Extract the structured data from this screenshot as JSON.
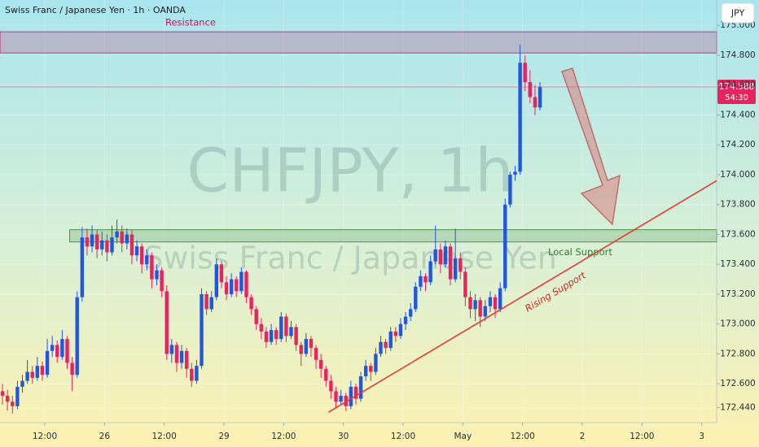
{
  "chart_data": {
    "type": "candlestick",
    "title": "Swiss Franc / Japanese Yen · 1h · OANDA",
    "watermark": "CHFJPY, 1h",
    "watermark_subtitle": "Swiss Franc / Japanese Yen",
    "currency": "JPY",
    "countdown": "54:30",
    "up_color": "#2157e0",
    "down_color": "#e8245f",
    "xlim": [
      0,
      144
    ],
    "xticks": [
      {
        "value": 9,
        "label": "12:00"
      },
      {
        "value": 21,
        "label": "26"
      },
      {
        "value": 33,
        "label": "12:00"
      },
      {
        "value": 45,
        "label": "29"
      },
      {
        "value": 57,
        "label": "12:00"
      },
      {
        "value": 69,
        "label": "30"
      },
      {
        "value": 81,
        "label": "12:00"
      },
      {
        "value": 93,
        "label": "May"
      },
      {
        "value": 105,
        "label": "12:00"
      },
      {
        "value": 117,
        "label": "2"
      },
      {
        "value": 129,
        "label": "12:00"
      },
      {
        "value": 141,
        "label": "3"
      }
    ],
    "ylim": [
      172.34,
      175.17
    ],
    "yticks": [
      {
        "value": 175.0,
        "label": "175.000"
      },
      {
        "value": 174.8,
        "label": "174.800"
      },
      {
        "value": 174.6,
        "label": "174.600"
      },
      {
        "value": 174.4,
        "label": "174.400"
      },
      {
        "value": 174.2,
        "label": "174.200"
      },
      {
        "value": 174.0,
        "label": "174.000"
      },
      {
        "value": 173.8,
        "label": "173.800"
      },
      {
        "value": 173.6,
        "label": "173.600"
      },
      {
        "value": 173.4,
        "label": "173.400"
      },
      {
        "value": 173.2,
        "label": "173.200"
      },
      {
        "value": 173.0,
        "label": "173.000"
      },
      {
        "value": 172.8,
        "label": "172.800"
      },
      {
        "value": 172.6,
        "label": "172.600"
      },
      {
        "value": 172.44,
        "label": "172.440"
      }
    ],
    "zones": [
      {
        "label": "Resistance",
        "low": 174.815,
        "high": 174.957,
        "color": "#c2185b"
      },
      {
        "label": "Local Support",
        "low": 173.55,
        "high": 173.632,
        "color": "#2e7d32"
      }
    ],
    "trendline": {
      "label": "Rising Support",
      "x": [
        66,
        144
      ],
      "y": [
        172.41,
        173.96
      ],
      "color": "#e53935"
    },
    "ohlc": [
      [
        172.55,
        172.6,
        172.46,
        172.52
      ],
      [
        172.52,
        172.56,
        172.42,
        172.48
      ],
      [
        172.48,
        172.52,
        172.4,
        172.45
      ],
      [
        172.45,
        172.62,
        172.43,
        172.58
      ],
      [
        172.58,
        172.66,
        172.54,
        172.62
      ],
      [
        172.62,
        172.76,
        172.6,
        172.68
      ],
      [
        172.68,
        172.72,
        172.6,
        172.64
      ],
      [
        172.64,
        172.78,
        172.62,
        172.72
      ],
      [
        172.72,
        172.75,
        172.62,
        172.66
      ],
      [
        172.66,
        172.9,
        172.64,
        172.82
      ],
      [
        172.82,
        172.92,
        172.78,
        172.86
      ],
      [
        172.86,
        172.89,
        172.74,
        172.78
      ],
      [
        172.78,
        172.96,
        172.76,
        172.9
      ],
      [
        172.9,
        172.92,
        172.7,
        172.74
      ],
      [
        172.74,
        172.78,
        172.55,
        172.66
      ],
      [
        172.66,
        173.22,
        172.64,
        173.18
      ],
      [
        173.18,
        173.65,
        173.15,
        173.58
      ],
      [
        173.58,
        173.64,
        173.46,
        173.52
      ],
      [
        173.52,
        173.66,
        173.48,
        173.6
      ],
      [
        173.6,
        173.63,
        173.44,
        173.5
      ],
      [
        173.5,
        173.62,
        173.46,
        173.56
      ],
      [
        173.56,
        173.6,
        173.42,
        173.48
      ],
      [
        173.48,
        173.66,
        173.46,
        173.58
      ],
      [
        173.58,
        173.7,
        173.54,
        173.62
      ],
      [
        173.62,
        173.66,
        173.48,
        173.54
      ],
      [
        173.54,
        173.64,
        173.5,
        173.6
      ],
      [
        173.6,
        173.63,
        173.4,
        173.46
      ],
      [
        173.46,
        173.56,
        173.42,
        173.52
      ],
      [
        173.52,
        173.54,
        173.34,
        173.4
      ],
      [
        173.4,
        173.5,
        173.36,
        173.46
      ],
      [
        173.46,
        173.48,
        173.24,
        173.3
      ],
      [
        173.3,
        173.4,
        173.26,
        173.36
      ],
      [
        173.36,
        173.38,
        173.18,
        173.22
      ],
      [
        173.22,
        173.26,
        172.76,
        172.8
      ],
      [
        172.8,
        172.9,
        172.74,
        172.86
      ],
      [
        172.86,
        172.88,
        172.68,
        172.74
      ],
      [
        172.74,
        172.86,
        172.7,
        172.82
      ],
      [
        172.82,
        172.84,
        172.64,
        172.7
      ],
      [
        172.7,
        172.74,
        172.58,
        172.62
      ],
      [
        172.62,
        172.76,
        172.6,
        172.72
      ],
      [
        172.72,
        173.24,
        172.7,
        173.2
      ],
      [
        173.2,
        173.22,
        173.06,
        173.1
      ],
      [
        173.1,
        173.22,
        173.08,
        173.18
      ],
      [
        173.18,
        173.44,
        173.16,
        173.4
      ],
      [
        173.4,
        173.42,
        173.24,
        173.28
      ],
      [
        173.28,
        173.32,
        173.16,
        173.2
      ],
      [
        173.2,
        173.34,
        173.18,
        173.3
      ],
      [
        173.3,
        173.32,
        173.18,
        173.22
      ],
      [
        173.22,
        173.38,
        173.2,
        173.35
      ],
      [
        173.35,
        173.36,
        173.14,
        173.18
      ],
      [
        173.18,
        173.2,
        173.06,
        173.1
      ],
      [
        173.1,
        173.12,
        172.96,
        173.0
      ],
      [
        173.0,
        173.04,
        172.9,
        172.95
      ],
      [
        172.95,
        172.98,
        172.84,
        172.88
      ],
      [
        172.88,
        173.0,
        172.86,
        172.96
      ],
      [
        172.96,
        172.98,
        172.86,
        172.9
      ],
      [
        172.9,
        173.08,
        172.88,
        173.05
      ],
      [
        173.05,
        173.07,
        172.88,
        172.92
      ],
      [
        172.92,
        173.02,
        172.9,
        172.98
      ],
      [
        172.98,
        173.0,
        172.82,
        172.86
      ],
      [
        172.86,
        172.88,
        172.72,
        172.8
      ],
      [
        172.8,
        172.94,
        172.78,
        172.9
      ],
      [
        172.9,
        172.92,
        172.78,
        172.84
      ],
      [
        172.84,
        172.86,
        172.7,
        172.76
      ],
      [
        172.76,
        172.8,
        172.64,
        172.7
      ],
      [
        172.7,
        172.72,
        172.58,
        172.62
      ],
      [
        172.62,
        172.66,
        172.5,
        172.55
      ],
      [
        172.55,
        172.58,
        172.44,
        172.48
      ],
      [
        172.48,
        172.56,
        172.46,
        172.52
      ],
      [
        172.52,
        172.54,
        172.42,
        172.45
      ],
      [
        172.45,
        172.62,
        172.43,
        172.58
      ],
      [
        172.58,
        172.6,
        172.46,
        172.5
      ],
      [
        172.5,
        172.68,
        172.48,
        172.65
      ],
      [
        172.65,
        172.76,
        172.62,
        172.72
      ],
      [
        172.72,
        172.74,
        172.62,
        172.68
      ],
      [
        172.68,
        172.84,
        172.66,
        172.8
      ],
      [
        172.8,
        172.92,
        172.78,
        172.88
      ],
      [
        172.88,
        172.9,
        172.8,
        172.84
      ],
      [
        172.84,
        172.98,
        172.82,
        172.95
      ],
      [
        172.95,
        172.98,
        172.88,
        172.92
      ],
      [
        172.92,
        173.04,
        172.9,
        173.0
      ],
      [
        173.0,
        173.08,
        172.96,
        173.05
      ],
      [
        173.05,
        173.14,
        173.02,
        173.1
      ],
      [
        173.1,
        173.28,
        173.08,
        173.25
      ],
      [
        173.25,
        173.36,
        173.22,
        173.32
      ],
      [
        173.32,
        173.34,
        173.22,
        173.28
      ],
      [
        173.28,
        173.46,
        173.26,
        173.42
      ],
      [
        173.42,
        173.66,
        173.4,
        173.5
      ],
      [
        173.5,
        173.54,
        173.34,
        173.4
      ],
      [
        173.4,
        173.56,
        173.38,
        173.52
      ],
      [
        173.52,
        173.54,
        173.26,
        173.3
      ],
      [
        173.3,
        173.64,
        173.28,
        173.44
      ],
      [
        173.44,
        173.48,
        173.3,
        173.35
      ],
      [
        173.35,
        173.38,
        173.12,
        173.18
      ],
      [
        173.18,
        173.22,
        173.04,
        173.1
      ],
      [
        173.1,
        173.2,
        173.02,
        173.16
      ],
      [
        173.16,
        173.18,
        172.98,
        173.05
      ],
      [
        173.05,
        173.16,
        173.02,
        173.12
      ],
      [
        173.12,
        173.22,
        173.08,
        173.18
      ],
      [
        173.18,
        173.2,
        173.04,
        173.1
      ],
      [
        173.1,
        173.28,
        173.08,
        173.24
      ],
      [
        173.24,
        173.84,
        173.22,
        173.8
      ],
      [
        173.8,
        174.02,
        173.78,
        174.0
      ],
      [
        174.0,
        174.06,
        173.96,
        174.02
      ],
      [
        174.02,
        174.87,
        174.0,
        174.75
      ],
      [
        174.75,
        174.8,
        174.56,
        174.62
      ],
      [
        174.62,
        174.7,
        174.48,
        174.52
      ],
      [
        174.52,
        174.6,
        174.4,
        174.45
      ],
      [
        174.45,
        174.62,
        174.43,
        174.588
      ]
    ]
  }
}
